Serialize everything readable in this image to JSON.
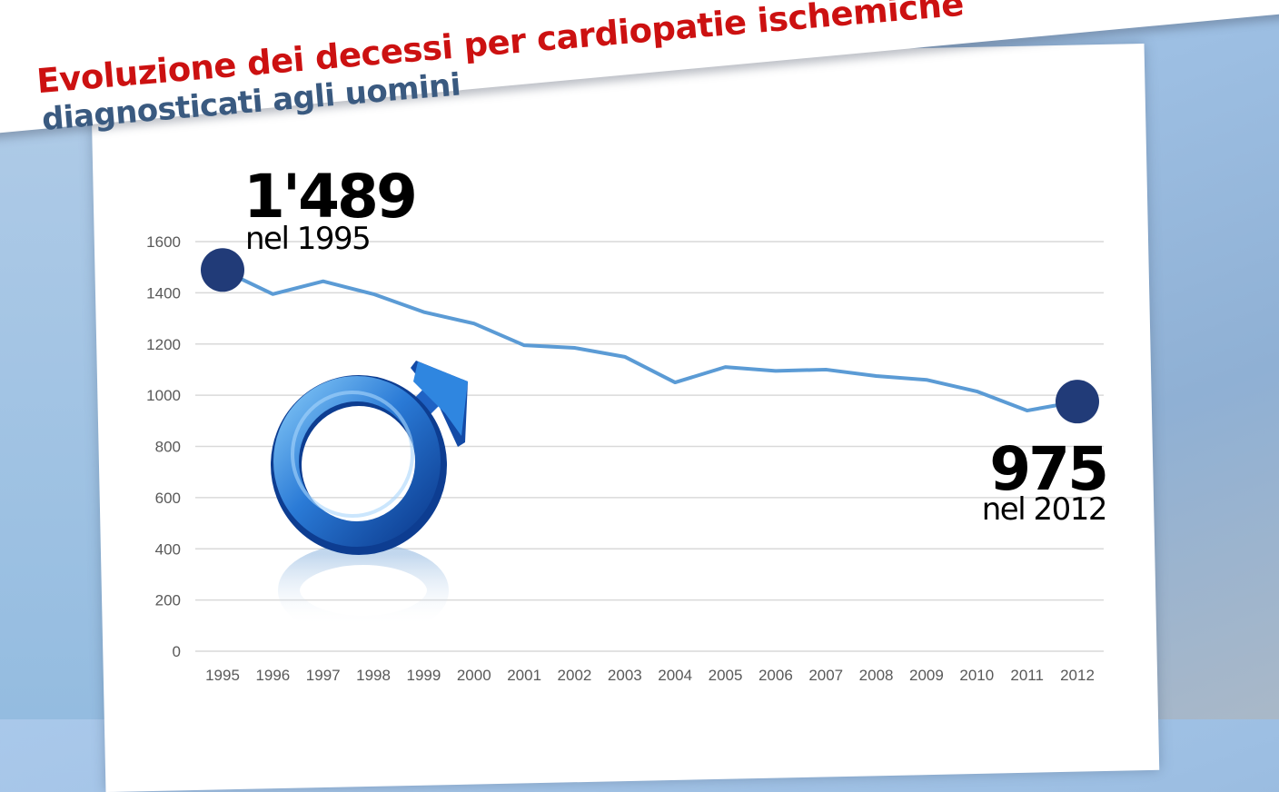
{
  "header": {
    "title_line1": "Evoluzione dei decessi per cardiopatie ischemiche",
    "title_line2": "diagnosticati agli uomini"
  },
  "callouts": {
    "start_value": "1'489",
    "start_label": "nel 1995",
    "end_value": "975",
    "end_label": "nel 2012"
  },
  "colors": {
    "line": "#5b9bd5",
    "marker": "#213b78",
    "title_red": "#cc1111",
    "title_blue": "#3a5a80",
    "grid": "#d9d9d9",
    "tick": "#595959"
  },
  "icon": "male-symbol-icon",
  "chart_data": {
    "type": "line",
    "categories": [
      "1995",
      "1996",
      "1997",
      "1998",
      "1999",
      "2000",
      "2001",
      "2002",
      "2003",
      "2004",
      "2005",
      "2006",
      "2007",
      "2008",
      "2009",
      "2010",
      "2011",
      "2012"
    ],
    "series": [
      {
        "values": [
          1489,
          1395,
          1445,
          1395,
          1325,
          1280,
          1195,
          1185,
          1150,
          1050,
          1110,
          1095,
          1100,
          1075,
          1060,
          1015,
          940,
          975
        ]
      }
    ],
    "y_ticks": [
      "0",
      "200",
      "400",
      "600",
      "800",
      "1000",
      "1200",
      "1400",
      "1600"
    ],
    "ylim": [
      0,
      1600
    ],
    "grid": true,
    "highlighted_points": [
      "1995",
      "2012"
    ]
  }
}
